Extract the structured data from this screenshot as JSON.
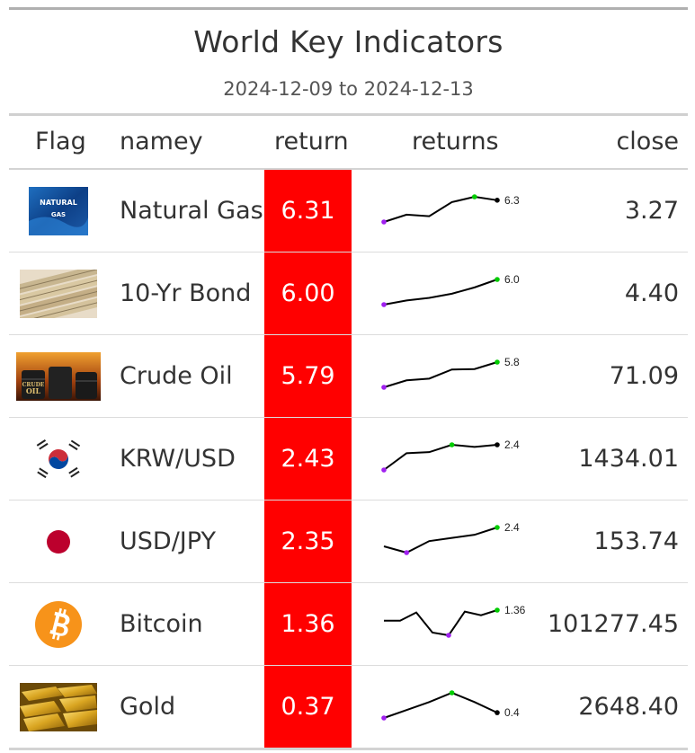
{
  "header": {
    "title": "World Key Indicators",
    "subtitle": "2024-12-09 to 2024-12-13"
  },
  "columns": {
    "flag": "Flag",
    "name": "namey",
    "return": "return",
    "returns": "returns",
    "close": "close"
  },
  "colors": {
    "return_bg": "#ff0000",
    "spark_line": "#000000",
    "spark_min": "#a020f0",
    "spark_max": "#00cc00",
    "spark_last": "#000000"
  },
  "rows": [
    {
      "name": "Natural Gas",
      "icon": "natural-gas-image",
      "icon_text": [
        "NATURAL",
        "GAS"
      ],
      "return": "6.31",
      "spark": [
        0.6,
        2.5,
        2.1,
        5.8,
        7.2,
        6.3
      ],
      "spark_label": "6.3",
      "close": "3.27"
    },
    {
      "name": "10-Yr Bond",
      "icon": "bond-certificate-image",
      "return": "6.00",
      "spark": [
        0.0,
        1.0,
        1.6,
        2.6,
        4.1,
        6.0
      ],
      "spark_label": "6.0",
      "close": "4.40"
    },
    {
      "name": "Crude Oil",
      "icon": "crude-oil-barrels-image",
      "icon_text": [
        "CRUDE",
        "OIL"
      ],
      "return": "5.79",
      "spark": [
        0.0,
        1.6,
        2.0,
        4.1,
        4.2,
        5.8
      ],
      "spark_label": "5.8",
      "close": "71.09"
    },
    {
      "name": "KRW/USD",
      "icon": "south-korea-flag-icon",
      "return": "2.43",
      "spark": [
        0.0,
        1.6,
        1.7,
        2.4,
        2.2,
        2.4
      ],
      "spark_label": "2.4",
      "close": "1434.01"
    },
    {
      "name": "USD/JPY",
      "icon": "japan-flag-icon",
      "return": "2.35",
      "spark": [
        0.6,
        0.0,
        1.1,
        1.4,
        1.7,
        2.4
      ],
      "spark_label": "2.4",
      "close": "153.74"
    },
    {
      "name": "Bitcoin",
      "icon": "bitcoin-icon",
      "return": "1.36",
      "spark": [
        0.2,
        0.2,
        1.1,
        -1.1,
        -1.4,
        1.2,
        0.8,
        1.36
      ],
      "spark_label": "1.36",
      "close": "101277.45"
    },
    {
      "name": "Gold",
      "icon": "gold-bars-image",
      "return": "0.37",
      "spark": [
        0.0,
        0.6,
        1.2,
        1.9,
        1.2,
        0.4
      ],
      "spark_label": "0.4",
      "close": "2648.40"
    }
  ]
}
